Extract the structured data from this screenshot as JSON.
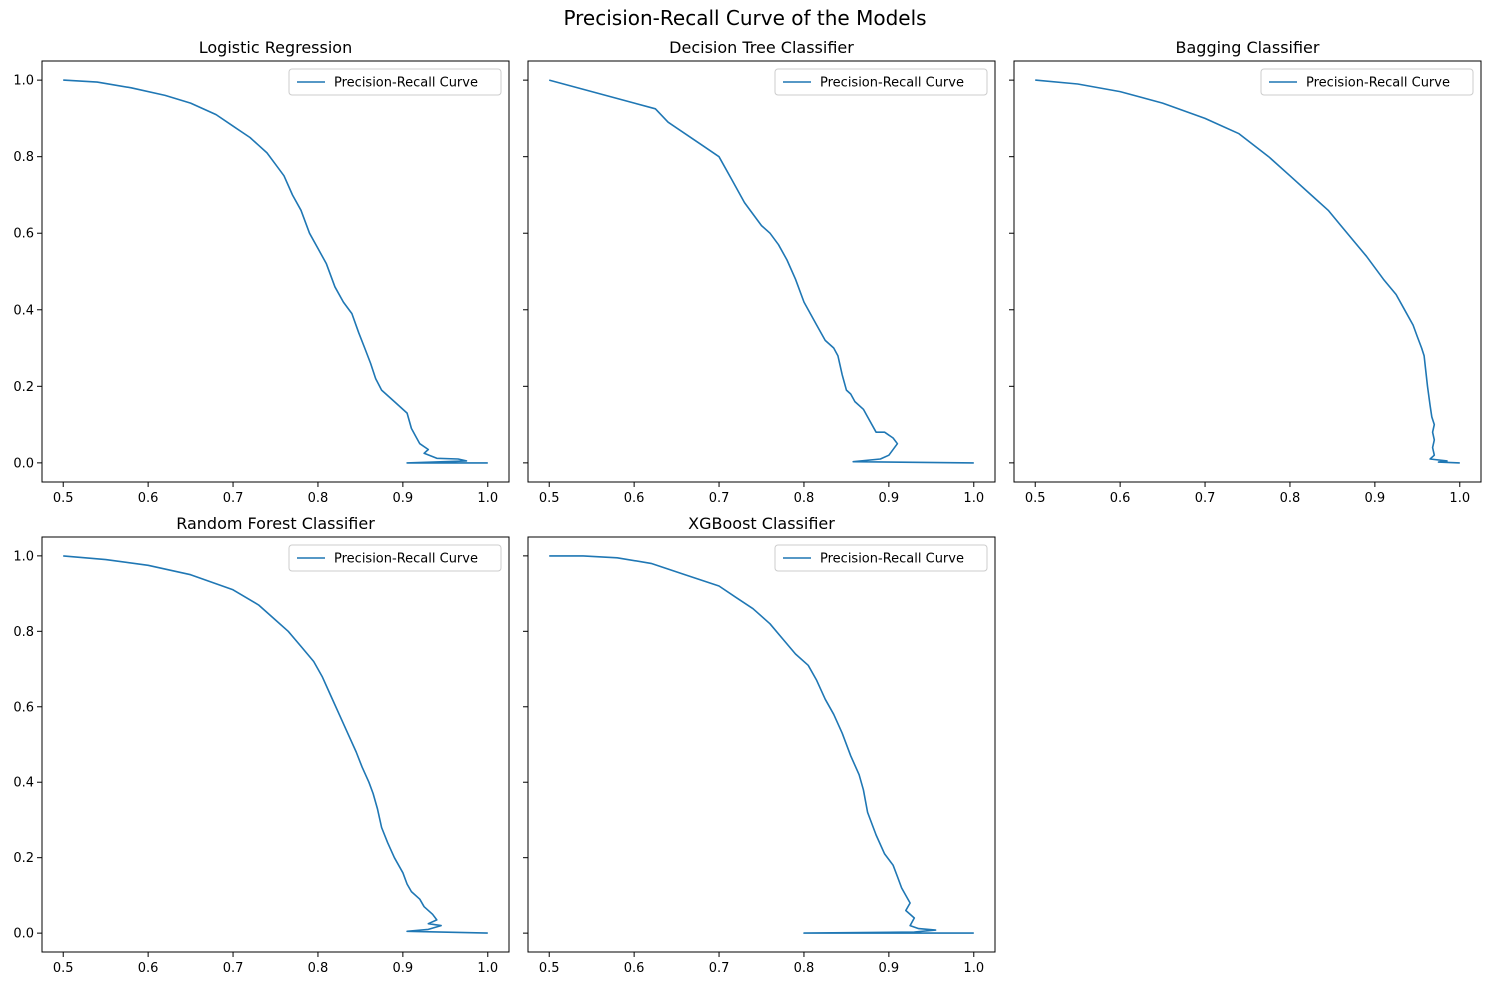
{
  "figure": {
    "title": "Precision-Recall Curve of the Models",
    "line_color": "#1f77b4"
  },
  "chart_data": [
    {
      "type": "line",
      "title": "Logistic Regression",
      "xlabel": "",
      "ylabel": "",
      "xlim": [
        0.475,
        1.025
      ],
      "ylim": [
        -0.05,
        1.05
      ],
      "xticks": [
        "0.5",
        "0.6",
        "0.7",
        "0.8",
        "0.9",
        "1.0"
      ],
      "yticks": [
        "0.0",
        "0.2",
        "0.4",
        "0.6",
        "0.8",
        "1.0"
      ],
      "grid": false,
      "legend_position": "upper-right",
      "series": [
        {
          "name": "Precision-Recall Curve",
          "x": [
            1.0,
            0.905,
            0.975,
            0.965,
            0.94,
            0.925,
            0.93,
            0.92,
            0.915,
            0.91,
            0.905,
            0.89,
            0.875,
            0.868,
            0.862,
            0.855,
            0.848,
            0.84,
            0.83,
            0.82,
            0.81,
            0.8,
            0.79,
            0.78,
            0.77,
            0.76,
            0.75,
            0.74,
            0.73,
            0.72,
            0.7,
            0.68,
            0.65,
            0.62,
            0.58,
            0.54,
            0.5
          ],
          "y": [
            0.0,
            0.0,
            0.005,
            0.01,
            0.012,
            0.025,
            0.035,
            0.05,
            0.07,
            0.09,
            0.13,
            0.16,
            0.19,
            0.22,
            0.26,
            0.3,
            0.34,
            0.39,
            0.42,
            0.46,
            0.52,
            0.56,
            0.6,
            0.66,
            0.7,
            0.75,
            0.78,
            0.81,
            0.83,
            0.85,
            0.88,
            0.91,
            0.94,
            0.96,
            0.98,
            0.995,
            1.0
          ]
        }
      ]
    },
    {
      "type": "line",
      "title": "Decision Tree Classifier",
      "xlabel": "",
      "ylabel": "",
      "xlim": [
        0.475,
        1.025
      ],
      "ylim": [
        -0.05,
        1.05
      ],
      "xticks": [
        "0.5",
        "0.6",
        "0.7",
        "0.8",
        "0.9",
        "1.0"
      ],
      "yticks": [
        "0.0",
        "0.2",
        "0.4",
        "0.6",
        "0.8",
        "1.0"
      ],
      "grid": false,
      "legend_position": "upper-right",
      "series": [
        {
          "name": "Precision-Recall Curve",
          "x": [
            1.0,
            0.858,
            0.89,
            0.9,
            0.91,
            0.905,
            0.895,
            0.885,
            0.875,
            0.87,
            0.86,
            0.855,
            0.85,
            0.845,
            0.84,
            0.835,
            0.825,
            0.815,
            0.8,
            0.79,
            0.78,
            0.77,
            0.76,
            0.75,
            0.73,
            0.715,
            0.7,
            0.68,
            0.66,
            0.64,
            0.625,
            0.5
          ],
          "y": [
            0.0,
            0.003,
            0.01,
            0.02,
            0.05,
            0.065,
            0.08,
            0.08,
            0.12,
            0.14,
            0.16,
            0.18,
            0.19,
            0.23,
            0.28,
            0.3,
            0.32,
            0.36,
            0.42,
            0.48,
            0.53,
            0.57,
            0.6,
            0.62,
            0.68,
            0.74,
            0.8,
            0.83,
            0.86,
            0.89,
            0.925,
            1.0
          ]
        }
      ]
    },
    {
      "type": "line",
      "title": "Bagging Classifier",
      "xlabel": "",
      "ylabel": "",
      "xlim": [
        0.475,
        1.025
      ],
      "ylim": [
        -0.05,
        1.05
      ],
      "xticks": [
        "0.5",
        "0.6",
        "0.7",
        "0.8",
        "0.9",
        "1.0"
      ],
      "yticks": [
        "0.0",
        "0.2",
        "0.4",
        "0.6",
        "0.8",
        "1.0"
      ],
      "grid": false,
      "legend_position": "upper-right",
      "series": [
        {
          "name": "Precision-Recall Curve",
          "x": [
            1.0,
            0.975,
            0.985,
            0.965,
            0.97,
            0.968,
            0.97,
            0.968,
            0.97,
            0.967,
            0.965,
            0.962,
            0.96,
            0.958,
            0.955,
            0.95,
            0.945,
            0.935,
            0.925,
            0.91,
            0.9,
            0.89,
            0.875,
            0.86,
            0.845,
            0.825,
            0.8,
            0.775,
            0.74,
            0.7,
            0.65,
            0.6,
            0.55,
            0.5
          ],
          "y": [
            0.0,
            0.002,
            0.005,
            0.01,
            0.02,
            0.04,
            0.06,
            0.08,
            0.1,
            0.12,
            0.15,
            0.2,
            0.24,
            0.28,
            0.3,
            0.33,
            0.36,
            0.4,
            0.44,
            0.48,
            0.51,
            0.54,
            0.58,
            0.62,
            0.66,
            0.7,
            0.75,
            0.8,
            0.86,
            0.9,
            0.94,
            0.97,
            0.99,
            1.0
          ]
        }
      ]
    },
    {
      "type": "line",
      "title": "Random Forest Classifier",
      "xlabel": "",
      "ylabel": "",
      "xlim": [
        0.475,
        1.025
      ],
      "ylim": [
        -0.05,
        1.05
      ],
      "xticks": [
        "0.5",
        "0.6",
        "0.7",
        "0.8",
        "0.9",
        "1.0"
      ],
      "yticks": [
        "0.0",
        "0.2",
        "0.4",
        "0.6",
        "0.8",
        "1.0"
      ],
      "grid": false,
      "legend_position": "upper-right",
      "series": [
        {
          "name": "Precision-Recall Curve",
          "x": [
            1.0,
            0.905,
            0.93,
            0.945,
            0.93,
            0.94,
            0.935,
            0.925,
            0.92,
            0.91,
            0.905,
            0.9,
            0.89,
            0.882,
            0.875,
            0.87,
            0.865,
            0.86,
            0.852,
            0.845,
            0.835,
            0.825,
            0.815,
            0.805,
            0.795,
            0.78,
            0.765,
            0.75,
            0.73,
            0.7,
            0.65,
            0.6,
            0.55,
            0.5
          ],
          "y": [
            0.0,
            0.005,
            0.01,
            0.02,
            0.025,
            0.035,
            0.05,
            0.07,
            0.09,
            0.11,
            0.13,
            0.16,
            0.2,
            0.24,
            0.28,
            0.33,
            0.37,
            0.4,
            0.44,
            0.48,
            0.53,
            0.58,
            0.63,
            0.68,
            0.72,
            0.76,
            0.8,
            0.83,
            0.87,
            0.91,
            0.95,
            0.975,
            0.99,
            1.0
          ]
        }
      ]
    },
    {
      "type": "line",
      "title": "XGBoost Classifier",
      "xlabel": "",
      "ylabel": "",
      "xlim": [
        0.475,
        1.025
      ],
      "ylim": [
        -0.05,
        1.05
      ],
      "xticks": [
        "0.5",
        "0.6",
        "0.7",
        "0.8",
        "0.9",
        "1.0"
      ],
      "yticks": [
        "0.0",
        "0.2",
        "0.4",
        "0.6",
        "0.8",
        "1.0"
      ],
      "grid": false,
      "legend_position": "upper-right",
      "series": [
        {
          "name": "Precision-Recall Curve",
          "x": [
            1.0,
            0.8,
            0.93,
            0.955,
            0.935,
            0.925,
            0.93,
            0.92,
            0.925,
            0.92,
            0.915,
            0.91,
            0.905,
            0.895,
            0.885,
            0.875,
            0.87,
            0.865,
            0.855,
            0.845,
            0.835,
            0.825,
            0.815,
            0.805,
            0.79,
            0.775,
            0.76,
            0.74,
            0.72,
            0.7,
            0.66,
            0.62,
            0.58,
            0.54,
            0.5
          ],
          "y": [
            0.0,
            0.0,
            0.003,
            0.008,
            0.012,
            0.02,
            0.04,
            0.06,
            0.08,
            0.1,
            0.12,
            0.15,
            0.18,
            0.21,
            0.26,
            0.32,
            0.38,
            0.42,
            0.47,
            0.53,
            0.58,
            0.62,
            0.67,
            0.71,
            0.74,
            0.78,
            0.82,
            0.86,
            0.89,
            0.92,
            0.95,
            0.98,
            0.995,
            1.0,
            1.0
          ]
        }
      ]
    }
  ]
}
